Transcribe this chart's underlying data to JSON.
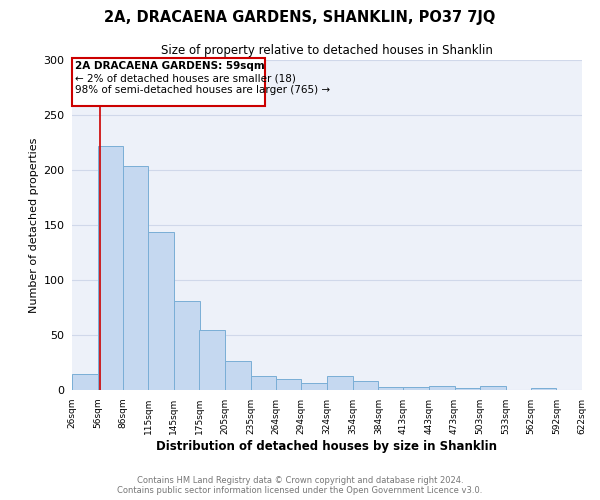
{
  "title": "2A, DRACAENA GARDENS, SHANKLIN, PO37 7JQ",
  "subtitle": "Size of property relative to detached houses in Shanklin",
  "xlabel": "Distribution of detached houses by size in Shanklin",
  "ylabel": "Number of detached properties",
  "bin_edges": [
    26,
    56,
    86,
    115,
    145,
    175,
    205,
    235,
    264,
    294,
    324,
    354,
    384,
    413,
    443,
    473,
    503,
    533,
    562,
    592,
    622
  ],
  "bar_heights": [
    15,
    222,
    204,
    144,
    81,
    55,
    26,
    13,
    10,
    6,
    13,
    8,
    3,
    3,
    4,
    2,
    4,
    0,
    2,
    0
  ],
  "bar_color": "#c5d8f0",
  "bar_edge_color": "#7aaed6",
  "vline_x": 59,
  "vline_color": "#cc0000",
  "ylim": [
    0,
    300
  ],
  "yticks": [
    0,
    50,
    100,
    150,
    200,
    250,
    300
  ],
  "xtick_labels": [
    "26sqm",
    "56sqm",
    "86sqm",
    "115sqm",
    "145sqm",
    "175sqm",
    "205sqm",
    "235sqm",
    "264sqm",
    "294sqm",
    "324sqm",
    "354sqm",
    "384sqm",
    "413sqm",
    "443sqm",
    "473sqm",
    "503sqm",
    "533sqm",
    "562sqm",
    "592sqm",
    "622sqm"
  ],
  "annotation_title": "2A DRACAENA GARDENS: 59sqm",
  "annotation_line1": "← 2% of detached houses are smaller (18)",
  "annotation_line2": "98% of semi-detached houses are larger (765) →",
  "annotation_box_color": "#cc0000",
  "footer_line1": "Contains HM Land Registry data © Crown copyright and database right 2024.",
  "footer_line2": "Contains public sector information licensed under the Open Government Licence v3.0.",
  "grid_color": "#d0d8ea",
  "background_color": "#edf1f9"
}
